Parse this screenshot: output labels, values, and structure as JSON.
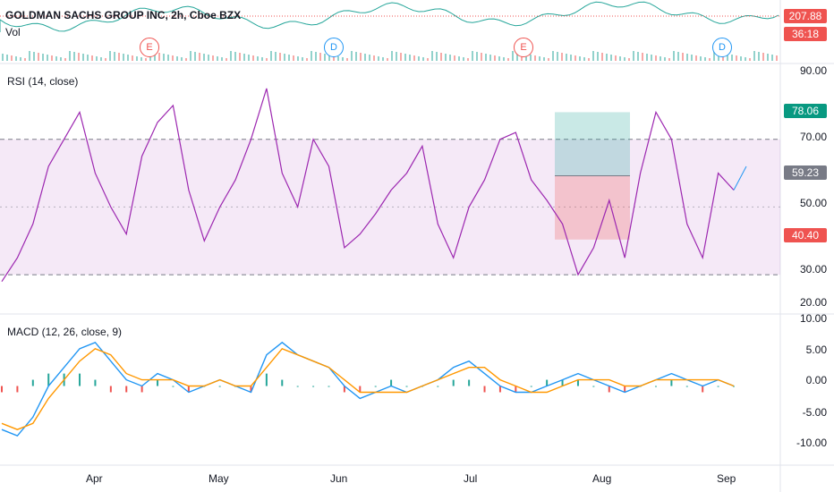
{
  "header": {
    "title": "GOLDMAN SACHS GROUP INC, 2h, Cboe BZX",
    "price_label": "207.88",
    "countdown": "36:18",
    "volume_label": "Vol",
    "price_badge_color": "#ef5350"
  },
  "events": [
    {
      "type": "E",
      "color": "#ef5350"
    },
    {
      "type": "D",
      "color": "#2196f3"
    },
    {
      "type": "E",
      "color": "#ef5350"
    },
    {
      "type": "D",
      "color": "#2196f3"
    }
  ],
  "rsi_panel": {
    "title": "RSI (14, close)",
    "ticks": [
      "90.00",
      "70.00",
      "50.00",
      "30.00",
      "20.00"
    ],
    "badges": [
      {
        "value": "78.06",
        "color": "#089981"
      },
      {
        "value": "59.23",
        "color": "#787b86"
      },
      {
        "value": "40.40",
        "color": "#ef5350"
      }
    ],
    "line_color": "#9c27b0",
    "band_upper": 70,
    "band_lower": 30
  },
  "macd_panel": {
    "title": "MACD (12, 26, close, 9)",
    "ticks": [
      "10.00",
      "5.00",
      "0.00",
      "-5.00",
      "-10.00"
    ],
    "macd_color": "#2196f3",
    "signal_color": "#ff9800"
  },
  "x_axis": {
    "labels": [
      "Apr",
      "May",
      "Jun",
      "Jul",
      "Aug",
      "Sep"
    ]
  },
  "chart_data": {
    "type": "line",
    "series": [
      {
        "name": "RSI (14, close)",
        "values": [
          28,
          35,
          45,
          62,
          70,
          78,
          60,
          50,
          42,
          65,
          75,
          80,
          55,
          40,
          50,
          58,
          70,
          85,
          60,
          50,
          70,
          62,
          38,
          42,
          48,
          55,
          60,
          68,
          45,
          35,
          50,
          58,
          70,
          72,
          58,
          52,
          45,
          30,
          38,
          52,
          35,
          60,
          78,
          70,
          45,
          35,
          60,
          55
        ]
      },
      {
        "name": "MACD",
        "values": [
          -7,
          -8,
          -5,
          0,
          3,
          6,
          7,
          4,
          1,
          0,
          2,
          1,
          -1,
          0,
          1,
          0,
          -1,
          5,
          7,
          5,
          4,
          3,
          0,
          -2,
          -1,
          0,
          -1,
          0,
          1,
          3,
          4,
          2,
          0,
          -1,
          -1,
          0,
          1,
          2,
          1,
          0,
          -1,
          0,
          1,
          2,
          1,
          0,
          1,
          0
        ]
      },
      {
        "name": "Signal",
        "values": [
          -6,
          -7,
          -6,
          -2,
          1,
          4,
          6,
          5,
          2,
          1,
          1,
          1,
          0,
          0,
          1,
          0,
          0,
          3,
          6,
          5,
          4,
          3,
          1,
          -1,
          -1,
          -1,
          -1,
          0,
          1,
          2,
          3,
          3,
          1,
          0,
          -1,
          -1,
          0,
          1,
          1,
          1,
          0,
          0,
          1,
          1,
          1,
          1,
          1,
          0
        ]
      }
    ],
    "rsi_ylim": [
      20,
      90
    ],
    "macd_ylim": [
      -12,
      11
    ]
  }
}
